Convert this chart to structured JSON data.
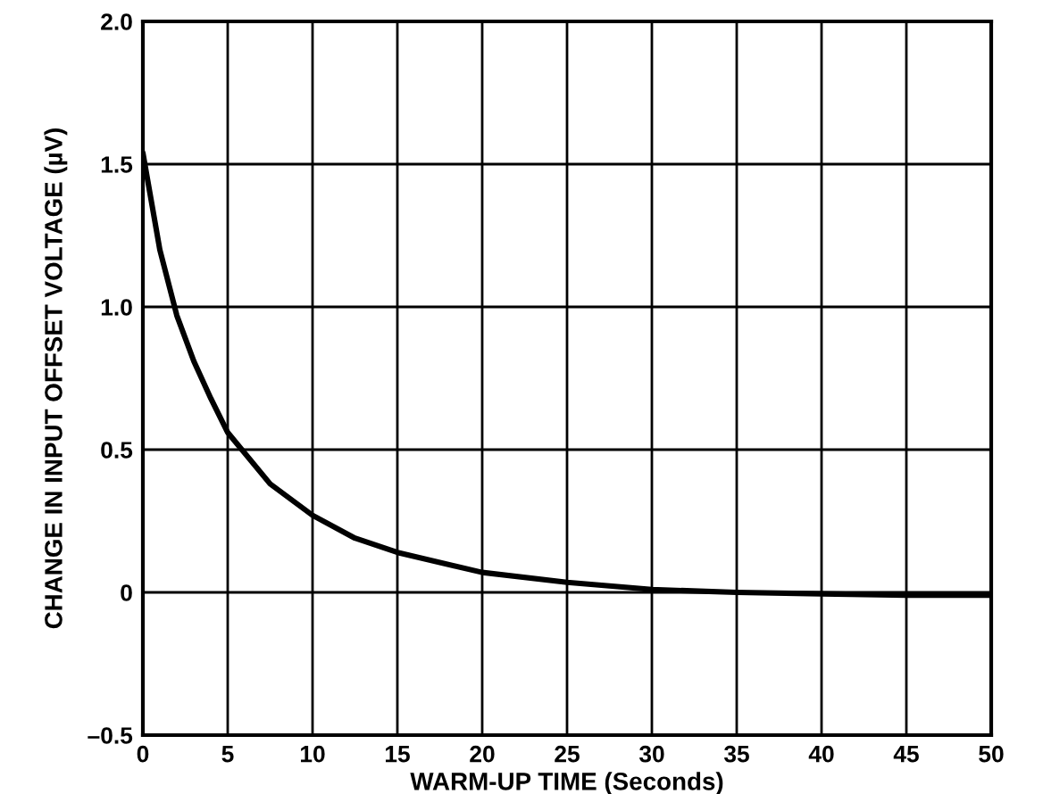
{
  "chart_data": {
    "type": "line",
    "xlabel": "WARM-UP TIME (Seconds)",
    "ylabel": "CHANGE IN INPUT OFFSET VOLTAGE (µV)",
    "x": [
      0,
      1,
      2,
      3,
      4,
      5,
      7.5,
      10,
      12.5,
      15,
      20,
      25,
      30,
      35,
      40,
      45,
      50
    ],
    "series": [
      {
        "color": "#000000",
        "values": [
          1.54,
          1.2,
          0.97,
          0.81,
          0.68,
          0.56,
          0.38,
          0.27,
          0.19,
          0.14,
          0.07,
          0.035,
          0.01,
          0.0,
          -0.005,
          -0.01,
          -0.01
        ]
      }
    ],
    "xlim": [
      0,
      50
    ],
    "xticks": [
      0,
      5,
      10,
      15,
      20,
      25,
      30,
      35,
      40,
      45,
      50
    ],
    "ylim": [
      -0.5,
      2.0
    ],
    "yticks": [
      {
        "value": -0.5,
        "label": "–0.5"
      },
      {
        "value": 0,
        "label": "0"
      },
      {
        "value": 0.5,
        "label": "0.5"
      },
      {
        "value": 1.0,
        "label": "1.0"
      },
      {
        "value": 1.5,
        "label": "1.5"
      },
      {
        "value": 2.0,
        "label": "2.0"
      }
    ],
    "grid": true,
    "legend": false
  }
}
